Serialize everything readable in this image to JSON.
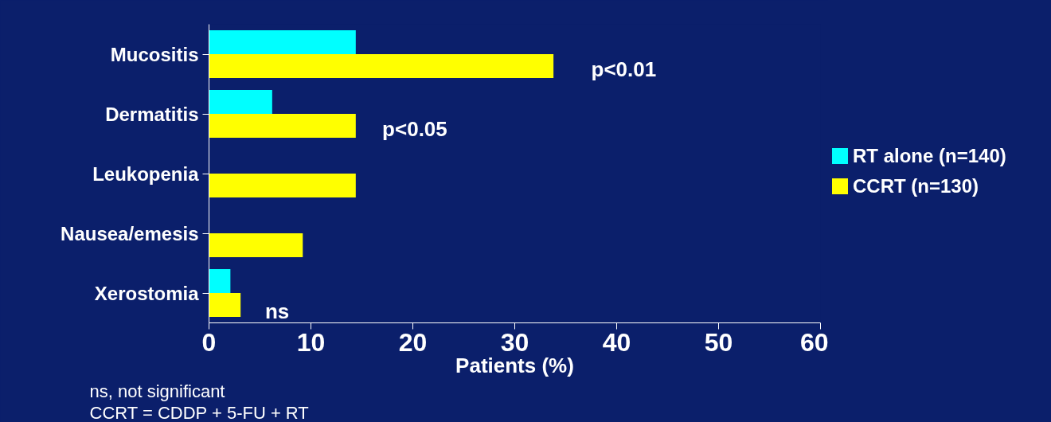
{
  "chart_data": {
    "type": "bar",
    "orientation": "horizontal",
    "xlabel": "Patients (%)",
    "categories": [
      "Mucositis",
      "Dermatitis",
      "Leukopenia",
      "Nausea/emesis",
      "Xerostomia"
    ],
    "series": [
      {
        "name": "RT alone (n=140)",
        "color": "#00ffff",
        "values": [
          14.4,
          6.2,
          0,
          0,
          2.1
        ]
      },
      {
        "name": "CCRT (n=130)",
        "color": "#ffff00",
        "values": [
          33.8,
          14.4,
          14.4,
          9.2,
          3.1
        ]
      }
    ],
    "xlim": [
      0,
      60
    ],
    "xticks": [
      0,
      10,
      20,
      30,
      40,
      50,
      60
    ],
    "grid": false,
    "legend": "right",
    "annotations": [
      "p<0.01",
      "p<0.05",
      "ns",
      "ns, not significant",
      "CCRT = CDDP + 5-FU + RT"
    ]
  }
}
